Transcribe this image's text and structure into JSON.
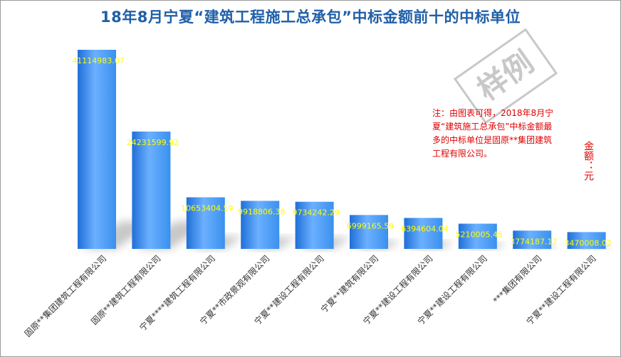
{
  "chart_data": {
    "type": "bar",
    "title": "18年8月宁夏“建筑工程施工总承包”中标金额前十的中标单位",
    "categories": [
      "固原**集团建筑工程有限公司",
      "固原**建筑工程有限公司",
      "宁夏****建筑工程有限公司",
      "宁夏**市政景观有限公司",
      "宁夏**建设工程有限公司",
      "宁夏**建筑有限公司",
      "宁夏**建设工程有限公司",
      "宁夏**建设工程有限公司",
      "***集团有限公司",
      "宁夏**建设工程有限公司"
    ],
    "values": [
      41114983.07,
      24231599.92,
      10653404.59,
      9918806.38,
      9734242.29,
      6999165.59,
      6394604.04,
      5210005.45,
      3774187.17,
      3470008.02
    ],
    "data_labels": [
      "41114983.07",
      "24231599.92",
      "10653404.59",
      "9918806.38",
      "9734242.29",
      "6999165.59",
      "6394604.04",
      "5210005.45",
      "3774187.17",
      "3470008.02"
    ],
    "ylim": [
      0,
      41114983.07
    ],
    "grid": false,
    "legend": "none",
    "colors": {
      "bar": "#3a90ee",
      "bar_light": "#6bb0ff",
      "bar_dark": "#1f6fd8",
      "label": "#ffff00",
      "title": "#1f5fa8",
      "note": "#e00000"
    }
  },
  "annotations": {
    "note": "注：由图表可得，2018年8月宁夏“建筑施工总承包”中标金额最多的中标单位是固原**集团建筑工程有限公司。",
    "unit": "金额：元",
    "watermark": "样例"
  }
}
